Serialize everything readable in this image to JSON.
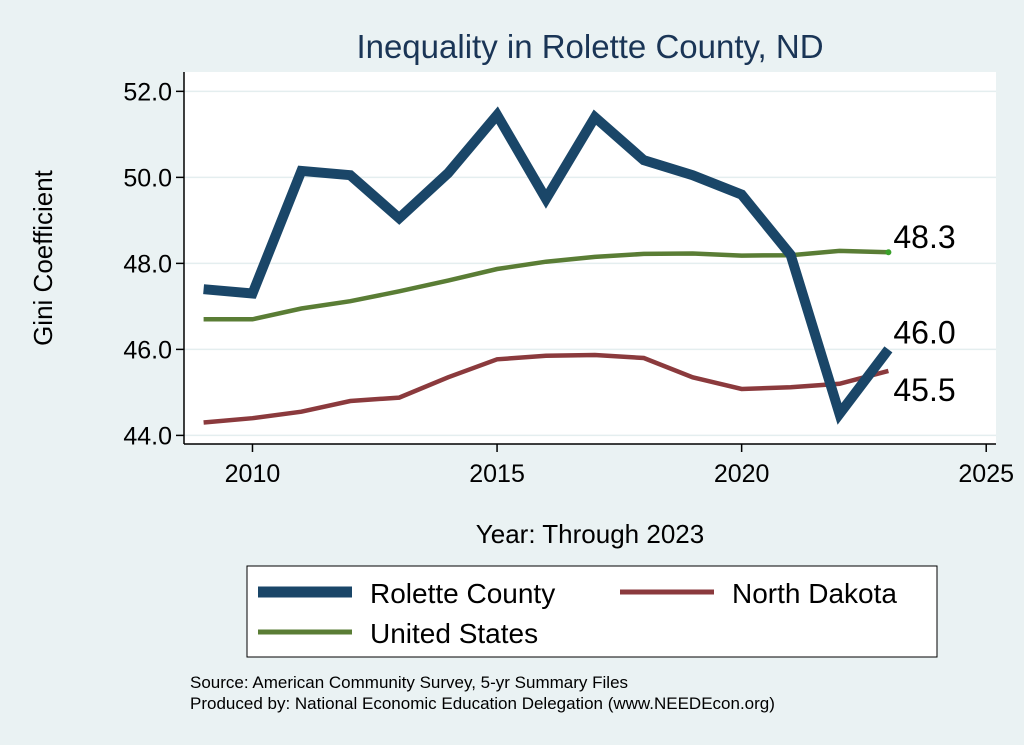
{
  "chart_data": {
    "type": "line",
    "title": "Inequality in Rolette County, ND",
    "xlabel": "Year: Through 2023",
    "ylabel": "Gini Coefficient",
    "xlim": [
      2008.6,
      2025.2
    ],
    "ylim": [
      43.8,
      52.45
    ],
    "xticks": [
      2010,
      2015,
      2020,
      2025
    ],
    "yticks": [
      44,
      46,
      48,
      50,
      52
    ],
    "ytick_labels": [
      "44.0",
      "46.0",
      "48.0",
      "50.0",
      "52.0"
    ],
    "x": [
      2009,
      2010,
      2011,
      2012,
      2013,
      2014,
      2015,
      2016,
      2017,
      2018,
      2019,
      2020,
      2021,
      2022,
      2023
    ],
    "series": [
      {
        "name": "Rolette County",
        "color": "#1a4668",
        "width": "thick",
        "values": [
          47.4,
          47.3,
          50.15,
          50.05,
          49.05,
          50.1,
          51.45,
          49.5,
          51.4,
          50.4,
          50.05,
          49.6,
          48.2,
          44.5,
          46.0
        ],
        "end_label": "46.0"
      },
      {
        "name": "North Dakota",
        "color": "#8b3a3d",
        "width": "medium",
        "values": [
          44.3,
          44.4,
          44.55,
          44.8,
          44.88,
          45.35,
          45.77,
          45.85,
          45.87,
          45.8,
          45.35,
          45.08,
          45.12,
          45.2,
          45.5
        ],
        "end_label": "45.5"
      },
      {
        "name": "United States",
        "color": "#5a7d35",
        "width": "medium",
        "values": [
          46.7,
          46.7,
          46.95,
          47.12,
          47.35,
          47.6,
          47.87,
          48.04,
          48.15,
          48.22,
          48.23,
          48.18,
          48.19,
          48.29,
          48.26
        ],
        "end_label": "48.3"
      }
    ],
    "legend": {
      "position": "bottom",
      "entries": [
        "Rolette County",
        "North Dakota",
        "United States"
      ]
    },
    "notes": [
      "Source: American Community Survey, 5-yr Summary Files",
      "Produced by: National Economic Education Delegation (www.NEEDEcon.org)"
    ]
  }
}
